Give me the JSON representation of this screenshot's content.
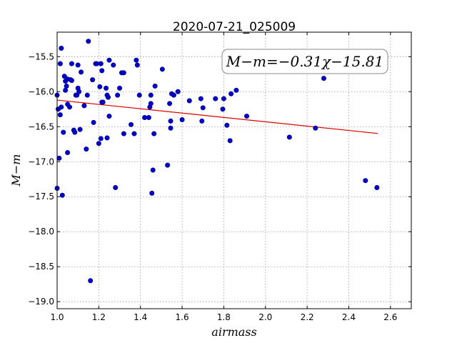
{
  "chart_data": {
    "type": "scatter",
    "title": "2020-07-21_025009",
    "xlabel": "airmass",
    "ylabel": "M−m",
    "xlim": [
      1.0,
      2.7
    ],
    "ylim": [
      -19.1,
      -15.15
    ],
    "xticks": [
      1.0,
      1.2,
      1.4,
      1.6,
      1.8,
      2.0,
      2.2,
      2.4,
      2.6
    ],
    "yticks": [
      -15.5,
      -16.0,
      -16.5,
      -17.0,
      -17.5,
      -18.0,
      -18.5,
      -19.0
    ],
    "xtick_labels": [
      "1.0",
      "1.2",
      "1.4",
      "1.6",
      "1.8",
      "2.0",
      "2.2",
      "2.4",
      "2.6"
    ],
    "ytick_labels": [
      "−15.5",
      "−16.0",
      "−16.5",
      "−17.0",
      "−17.5",
      "−18.0",
      "−18.5",
      "−19.0"
    ],
    "grid": true,
    "annotation": "M−m=−0.31χ−15.81",
    "point_color": "#0000cc",
    "fit_color": "#dd0000",
    "fit": {
      "slope": -0.31,
      "intercept": -15.81,
      "x_range": [
        1.0,
        2.54
      ]
    },
    "points": [
      [
        1.0,
        -16.05
      ],
      [
        1.005,
        -16.25
      ],
      [
        1.01,
        -16.95
      ],
      [
        1.0,
        -17.38
      ],
      [
        1.015,
        -15.6
      ],
      [
        1.02,
        -15.38
      ],
      [
        1.015,
        -16.33
      ],
      [
        1.02,
        -16.22
      ],
      [
        1.03,
        -16.58
      ],
      [
        1.025,
        -17.48
      ],
      [
        1.035,
        -15.78
      ],
      [
        1.04,
        -15.85
      ],
      [
        1.04,
        -15.98
      ],
      [
        1.045,
        -15.92
      ],
      [
        1.05,
        -15.82
      ],
      [
        1.05,
        -16.18
      ],
      [
        1.05,
        -16.87
      ],
      [
        1.06,
        -16.22
      ],
      [
        1.065,
        -15.83
      ],
      [
        1.07,
        -15.84
      ],
      [
        1.07,
        -15.6
      ],
      [
        1.08,
        -16.55
      ],
      [
        1.085,
        -16.58
      ],
      [
        1.09,
        -16.05
      ],
      [
        1.095,
        -16.05
      ],
      [
        1.1,
        -15.62
      ],
      [
        1.1,
        -15.95
      ],
      [
        1.105,
        -16.0
      ],
      [
        1.11,
        -16.54
      ],
      [
        1.115,
        -15.72
      ],
      [
        1.13,
        -16.2
      ],
      [
        1.14,
        -16.82
      ],
      [
        1.145,
        -16.05
      ],
      [
        1.15,
        -15.28
      ],
      [
        1.16,
        -18.7
      ],
      [
        1.17,
        -15.83
      ],
      [
        1.175,
        -16.44
      ],
      [
        1.185,
        -15.6
      ],
      [
        1.19,
        -15.6
      ],
      [
        1.2,
        -16.74
      ],
      [
        1.205,
        -15.93
      ],
      [
        1.21,
        -15.6
      ],
      [
        1.21,
        -16.67
      ],
      [
        1.215,
        -15.7
      ],
      [
        1.215,
        -16.15
      ],
      [
        1.22,
        -16.15
      ],
      [
        1.235,
        -15.95
      ],
      [
        1.24,
        -16.05
      ],
      [
        1.24,
        -16.66
      ],
      [
        1.245,
        -16.08
      ],
      [
        1.25,
        -15.55
      ],
      [
        1.25,
        -16.35
      ],
      [
        1.27,
        -15.62
      ],
      [
        1.28,
        -17.37
      ],
      [
        1.29,
        -16.05
      ],
      [
        1.3,
        -15.95
      ],
      [
        1.31,
        -15.73
      ],
      [
        1.32,
        -15.73
      ],
      [
        1.32,
        -16.6
      ],
      [
        1.355,
        -16.47
      ],
      [
        1.37,
        -16.6
      ],
      [
        1.38,
        -15.55
      ],
      [
        1.385,
        -15.62
      ],
      [
        1.395,
        -16.05
      ],
      [
        1.42,
        -16.37
      ],
      [
        1.44,
        -16.37
      ],
      [
        1.445,
        -16.22
      ],
      [
        1.45,
        -16.05
      ],
      [
        1.45,
        -16.17
      ],
      [
        1.455,
        -17.45
      ],
      [
        1.46,
        -17.12
      ],
      [
        1.465,
        -16.6
      ],
      [
        1.47,
        -15.92
      ],
      [
        1.505,
        -15.68
      ],
      [
        1.53,
        -17.05
      ],
      [
        1.54,
        -16.17
      ],
      [
        1.545,
        -16.42
      ],
      [
        1.545,
        -16.52
      ],
      [
        1.55,
        -16.03
      ],
      [
        1.56,
        -16.05
      ],
      [
        1.58,
        -16.0
      ],
      [
        1.6,
        -16.4
      ],
      [
        1.635,
        -16.13
      ],
      [
        1.69,
        -16.1
      ],
      [
        1.695,
        -16.42
      ],
      [
        1.7,
        -16.23
      ],
      [
        1.76,
        -16.1
      ],
      [
        1.795,
        -16.25
      ],
      [
        1.8,
        -16.1
      ],
      [
        1.815,
        -16.48
      ],
      [
        1.83,
        -16.7
      ],
      [
        1.835,
        -16.03
      ],
      [
        1.86,
        -15.98
      ],
      [
        1.91,
        -16.35
      ],
      [
        2.115,
        -16.65
      ],
      [
        2.24,
        -16.52
      ],
      [
        2.28,
        -15.81
      ],
      [
        2.48,
        -17.27
      ],
      [
        2.535,
        -17.37
      ]
    ]
  }
}
